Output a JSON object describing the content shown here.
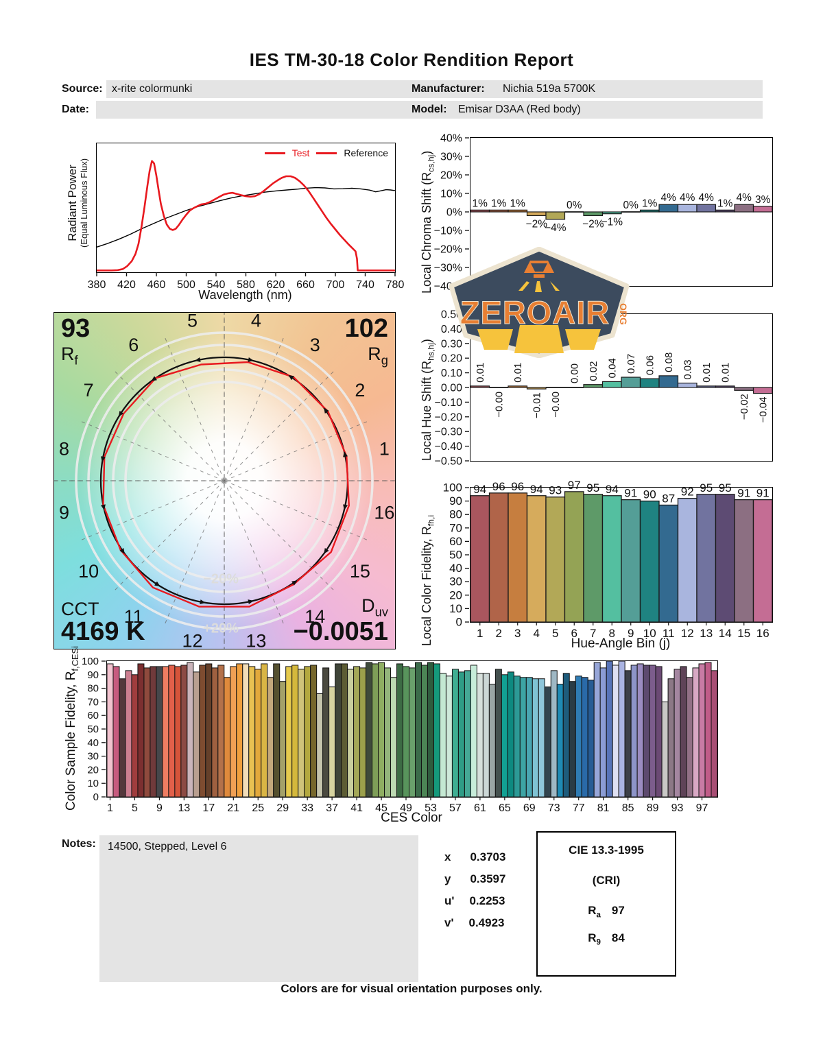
{
  "title": "IES TM-30-18 Color Rendition Report",
  "header": {
    "source_label": "Source:",
    "source_value": "x-rite colormunki",
    "date_label": "Date:",
    "date_value": "",
    "manufacturer_label": "Manufacturer:",
    "manufacturer_value": "Nichia 519a 5700K",
    "model_label": "Model:",
    "model_value": "Emisar D3AA (Red body)"
  },
  "logo": {
    "text": "ZEROAIR",
    "org": "ORG"
  },
  "bin_colors": [
    "#a9565e",
    "#b06449",
    "#c67e3f",
    "#d6ab5c",
    "#b2a857",
    "#94a355",
    "#5e9a68",
    "#54bfa0",
    "#549e97",
    "#1f8381",
    "#336a90",
    "#a9b5de",
    "#71739f",
    "#5d4b73",
    "#8c6f82",
    "#c46d94"
  ],
  "vector_graphic": {
    "rf_value": "93",
    "rf_pre": "R",
    "rf_sub": "f",
    "rg_value": "102",
    "rg_pre": "R",
    "rg_sub": "g",
    "cct_label": "CCT",
    "cct_value": "4169 K",
    "duv_pre": "D",
    "duv_sub": "uv",
    "duv_value": "−0.0051",
    "ring_minus": "−20%",
    "ring_plus": "+20%",
    "bin_labels": [
      "1",
      "2",
      "3",
      "4",
      "5",
      "6",
      "7",
      "8",
      "9",
      "10",
      "11",
      "12",
      "13",
      "14",
      "15",
      "16"
    ],
    "chroma_multipliers": [
      1.01,
      1.01,
      1.01,
      0.98,
      0.96,
      1.0,
      0.98,
      0.99,
      1.0,
      1.01,
      1.04,
      1.04,
      1.04,
      1.01,
      1.04,
      1.03
    ],
    "hue_shifts": [
      0.01,
      0,
      0.01,
      -0.01,
      0,
      0,
      0.02,
      0.04,
      0.07,
      0.06,
      0.08,
      0.03,
      0.01,
      0.01,
      -0.02,
      -0.04
    ]
  },
  "chart_data": [
    {
      "id": "spd",
      "type": "line",
      "ylabel_line1": "Radiant Power",
      "ylabel_line2": "(Equal Luminous Flux)",
      "xlabel": "Wavelength (nm)",
      "xlim": [
        380,
        780
      ],
      "ylim": [
        0,
        1
      ],
      "x_ticks": [
        380,
        420,
        460,
        500,
        540,
        580,
        620,
        660,
        700,
        740,
        780
      ],
      "legend_pos": "top-right",
      "series": [
        {
          "name": "Test",
          "color": "#e8191f",
          "points": [
            [
              380,
              0.004
            ],
            [
              400,
              0.004
            ],
            [
              408,
              0.006
            ],
            [
              415,
              0.015
            ],
            [
              421,
              0.04
            ],
            [
              427,
              0.08
            ],
            [
              432,
              0.14
            ],
            [
              436,
              0.22
            ],
            [
              440,
              0.36
            ],
            [
              444,
              0.52
            ],
            [
              448,
              0.7
            ],
            [
              451,
              0.82
            ],
            [
              454,
              0.9
            ],
            [
              457,
              0.88
            ],
            [
              460,
              0.78
            ],
            [
              463,
              0.66
            ],
            [
              466,
              0.55
            ],
            [
              470,
              0.45
            ],
            [
              474,
              0.38
            ],
            [
              478,
              0.345
            ],
            [
              482,
              0.335
            ],
            [
              486,
              0.345
            ],
            [
              490,
              0.375
            ],
            [
              495,
              0.42
            ],
            [
              500,
              0.46
            ],
            [
              505,
              0.495
            ],
            [
              510,
              0.515
            ],
            [
              515,
              0.53
            ],
            [
              520,
              0.545
            ],
            [
              526,
              0.55
            ],
            [
              532,
              0.565
            ],
            [
              538,
              0.585
            ],
            [
              544,
              0.605
            ],
            [
              550,
              0.625
            ],
            [
              556,
              0.635
            ],
            [
              562,
              0.64
            ],
            [
              568,
              0.63
            ],
            [
              574,
              0.62
            ],
            [
              580,
              0.612
            ],
            [
              586,
              0.608
            ],
            [
              592,
              0.612
            ],
            [
              598,
              0.628
            ],
            [
              604,
              0.655
            ],
            [
              610,
              0.685
            ],
            [
              616,
              0.715
            ],
            [
              622,
              0.74
            ],
            [
              628,
              0.762
            ],
            [
              634,
              0.775
            ],
            [
              640,
              0.775
            ],
            [
              646,
              0.762
            ],
            [
              652,
              0.735
            ],
            [
              658,
              0.7
            ],
            [
              664,
              0.655
            ],
            [
              670,
              0.6
            ],
            [
              676,
              0.545
            ],
            [
              682,
              0.49
            ],
            [
              688,
              0.435
            ],
            [
              694,
              0.385
            ],
            [
              700,
              0.34
            ],
            [
              706,
              0.295
            ],
            [
              712,
              0.255
            ],
            [
              718,
              0.215
            ],
            [
              723,
              0.185
            ],
            [
              727,
              0.16
            ],
            [
              729,
              0.1
            ],
            [
              730,
              0.004
            ],
            [
              740,
              0.004
            ],
            [
              780,
              0.004
            ]
          ]
        },
        {
          "name": "Reference",
          "color": "#000000",
          "points": [
            [
              380,
              0.195
            ],
            [
              395,
              0.225
            ],
            [
              410,
              0.26
            ],
            [
              425,
              0.3
            ],
            [
              440,
              0.345
            ],
            [
              455,
              0.385
            ],
            [
              470,
              0.425
            ],
            [
              485,
              0.46
            ],
            [
              500,
              0.495
            ],
            [
              515,
              0.525
            ],
            [
              530,
              0.55
            ],
            [
              545,
              0.575
            ],
            [
              560,
              0.597
            ],
            [
              575,
              0.615
            ],
            [
              590,
              0.63
            ],
            [
              605,
              0.645
            ],
            [
              620,
              0.655
            ],
            [
              635,
              0.663
            ],
            [
              650,
              0.67
            ],
            [
              662,
              0.678
            ],
            [
              674,
              0.682
            ],
            [
              686,
              0.68
            ],
            [
              698,
              0.672
            ],
            [
              710,
              0.673
            ],
            [
              722,
              0.677
            ],
            [
              734,
              0.672
            ],
            [
              746,
              0.662
            ],
            [
              754,
              0.648
            ],
            [
              760,
              0.655
            ],
            [
              768,
              0.665
            ],
            [
              774,
              0.663
            ],
            [
              780,
              0.658
            ]
          ]
        }
      ]
    },
    {
      "id": "chroma_shift",
      "type": "bar",
      "ylabel_pre": "Local Chroma Shift (R",
      "ylabel_sub": "cs,hj",
      "ylabel_post": ")",
      "ylim": [
        -40,
        40
      ],
      "y_tick_vals": [
        40,
        30,
        20,
        10,
        0,
        -10,
        -20,
        -30,
        -40
      ],
      "y_tick_labels": [
        "40%",
        "30%",
        "20%",
        "10%",
        "0%",
        "−10%",
        "−20%",
        "−30%",
        "−40%"
      ],
      "categories": [
        1,
        2,
        3,
        4,
        5,
        6,
        7,
        8,
        9,
        10,
        11,
        12,
        13,
        14,
        15,
        16
      ],
      "values": [
        1,
        1,
        1,
        -2,
        -4,
        0,
        -2,
        -1,
        0,
        1,
        4,
        4,
        4,
        1,
        4,
        3
      ],
      "labels": [
        "1%",
        "1%",
        "1%",
        "−2%",
        "−4%",
        "0%",
        "−2%",
        "−1%",
        "0%",
        "1%",
        "4%",
        "4%",
        "4%",
        "1%",
        "4%",
        "3%"
      ]
    },
    {
      "id": "hue_shift",
      "type": "bar",
      "ylabel_pre": "Local Hue Shift (R",
      "ylabel_sub": "hs,hj",
      "ylabel_post": ")",
      "ylim": [
        -0.5,
        0.5
      ],
      "y_tick_vals": [
        0.5,
        0.4,
        0.3,
        0.2,
        0.1,
        0,
        -0.1,
        -0.2,
        -0.3,
        -0.4,
        -0.5
      ],
      "y_tick_labels": [
        "0.50",
        "0.40",
        "0.30",
        "0.20",
        "0.10",
        "0.00",
        "−0.10",
        "−0.20",
        "−0.30",
        "−0.40",
        "−0.50"
      ],
      "categories": [
        1,
        2,
        3,
        4,
        5,
        6,
        7,
        8,
        9,
        10,
        11,
        12,
        13,
        14,
        15,
        16
      ],
      "values": [
        0.01,
        -0.004,
        0.01,
        -0.01,
        -0.004,
        0.004,
        0.02,
        0.04,
        0.07,
        0.06,
        0.08,
        0.03,
        0.01,
        0.01,
        -0.02,
        -0.04
      ],
      "labels": [
        "0.01",
        "−0.00",
        "0.01",
        "−0.01",
        "−0.00",
        "0.00",
        "0.02",
        "0.04",
        "0.07",
        "0.06",
        "0.08",
        "0.03",
        "0.01",
        "0.01",
        "−0.02",
        "−0.04"
      ]
    },
    {
      "id": "local_fidelity",
      "type": "bar",
      "ylabel_pre": "Local Color Fidelity, R",
      "ylabel_sub": "fh,i",
      "ylabel_post": "",
      "xlabel": "Hue-Angle Bin (j)",
      "ylim": [
        0,
        100
      ],
      "y_tick_vals": [
        100,
        90,
        80,
        70,
        60,
        50,
        40,
        30,
        20,
        10,
        0
      ],
      "categories": [
        1,
        2,
        3,
        4,
        5,
        6,
        7,
        8,
        9,
        10,
        11,
        12,
        13,
        14,
        15,
        16
      ],
      "values": [
        94,
        96,
        96,
        94,
        93,
        97,
        95,
        94,
        91,
        90,
        87,
        92,
        95,
        95,
        91,
        91
      ]
    },
    {
      "id": "ces_fidelity",
      "type": "bar",
      "ylabel_pre": "Color Sample Fidelity, R",
      "ylabel_sub": "f,CESi",
      "ylabel_post": "",
      "xlabel": "CES Color",
      "ylim": [
        0,
        100
      ],
      "y_tick_vals": [
        100,
        90,
        80,
        70,
        60,
        50,
        40,
        30,
        20,
        10,
        0
      ],
      "x_tick_vals": [
        1,
        5,
        9,
        13,
        17,
        21,
        25,
        29,
        33,
        37,
        41,
        45,
        49,
        53,
        57,
        61,
        65,
        69,
        73,
        77,
        81,
        85,
        89,
        93,
        97
      ],
      "values": [
        98,
        96,
        87,
        93,
        90,
        98,
        95,
        96,
        96,
        96,
        97,
        96,
        97,
        99,
        92,
        97,
        98,
        95,
        97,
        88,
        96,
        98,
        98,
        96,
        94,
        98,
        88,
        98,
        85,
        96,
        97,
        94,
        96,
        97,
        76,
        95,
        81,
        98,
        98,
        94,
        96,
        95,
        99,
        98,
        99,
        95,
        88,
        98,
        96,
        95,
        99,
        97,
        99,
        98,
        91,
        89,
        94,
        92,
        93,
        97,
        91,
        91,
        83,
        94,
        90,
        92,
        89,
        88,
        88,
        87,
        87,
        81,
        93,
        83,
        91,
        85,
        89,
        88,
        86,
        99,
        95,
        100,
        97,
        100,
        93,
        97,
        98,
        97,
        97,
        96,
        70,
        87,
        94,
        96,
        88,
        95,
        98,
        99,
        93
      ],
      "colors": [
        "#f2c3cf",
        "#c75b7f",
        "#54383c",
        "#cd7f91",
        "#a03d3e",
        "#7c2f30",
        "#8f4a3d",
        "#703a3b",
        "#46474b",
        "#ee7d62",
        "#e2604a",
        "#d5543a",
        "#8c4a44",
        "#cab4ba",
        "#b99f90",
        "#7e4c30",
        "#65402a",
        "#9f6040",
        "#b4714a",
        "#e08a3c",
        "#f0a055",
        "#ef9f3e",
        "#f2ddb8",
        "#e8c152",
        "#e2a93c",
        "#d9b545",
        "#c3a87c",
        "#55502f",
        "#a4a169",
        "#e5ca4e",
        "#d4b83c",
        "#cfc37a",
        "#b3a83f",
        "#76672c",
        "#c5c4ac",
        "#4b4a40",
        "#d6d3a0",
        "#3f4438",
        "#5c5c34",
        "#c9cf9e",
        "#a4a858",
        "#9ba04b",
        "#3e4a3a",
        "#7e9e58",
        "#8fae62",
        "#94b57c",
        "#bcd9b2",
        "#3c6b44",
        "#58945c",
        "#6aa06c",
        "#3b6b4a",
        "#4c8555",
        "#2f5c3e",
        "#159a7c",
        "#c4e8d2",
        "#cfe9da",
        "#3fae92",
        "#2f9c86",
        "#45a896",
        "#c7ecd9",
        "#d6dfdb",
        "#ccd7d6",
        "#9aa5a4",
        "#44504e",
        "#12a193",
        "#0d8a80",
        "#2c9a96",
        "#3da4a4",
        "#4aa6b2",
        "#7fc3d4",
        "#8fc6da",
        "#32444e",
        "#9fb8c4",
        "#1f8ab4",
        "#1e5c7c",
        "#2a3c46",
        "#2f7cb4",
        "#2a6aa8",
        "#275c94",
        "#97a6d8",
        "#8b9cd4",
        "#5874b8",
        "#dfe0f2",
        "#aab4e2",
        "#3c4048",
        "#8d94c8",
        "#9b8cc0",
        "#5d4a6e",
        "#7c5d8c",
        "#6b4a74",
        "#c9c8c6",
        "#8c7886",
        "#a486a0",
        "#5f4458",
        "#927186",
        "#d8a8c4",
        "#c87ba4",
        "#c05c88",
        "#a84e74"
      ]
    }
  ],
  "notes": {
    "label": "Notes:",
    "text": "14500, Stepped, Level 6"
  },
  "chromaticity": {
    "rows": [
      {
        "label": "x",
        "value": "0.3703"
      },
      {
        "label": "y",
        "value": "0.3597"
      },
      {
        "label": "u'",
        "value": "0.2253"
      },
      {
        "label": "v'",
        "value": "0.4923"
      }
    ]
  },
  "cri": {
    "title": "CIE 13.3-1995",
    "subtitle": "(CRI)",
    "ra_pre": "R",
    "ra_sub": "a",
    "ra_value": "97",
    "r9_pre": "R",
    "r9_sub": "9",
    "r9_value": "84"
  },
  "footer": "Colors are for visual orientation purposes only."
}
